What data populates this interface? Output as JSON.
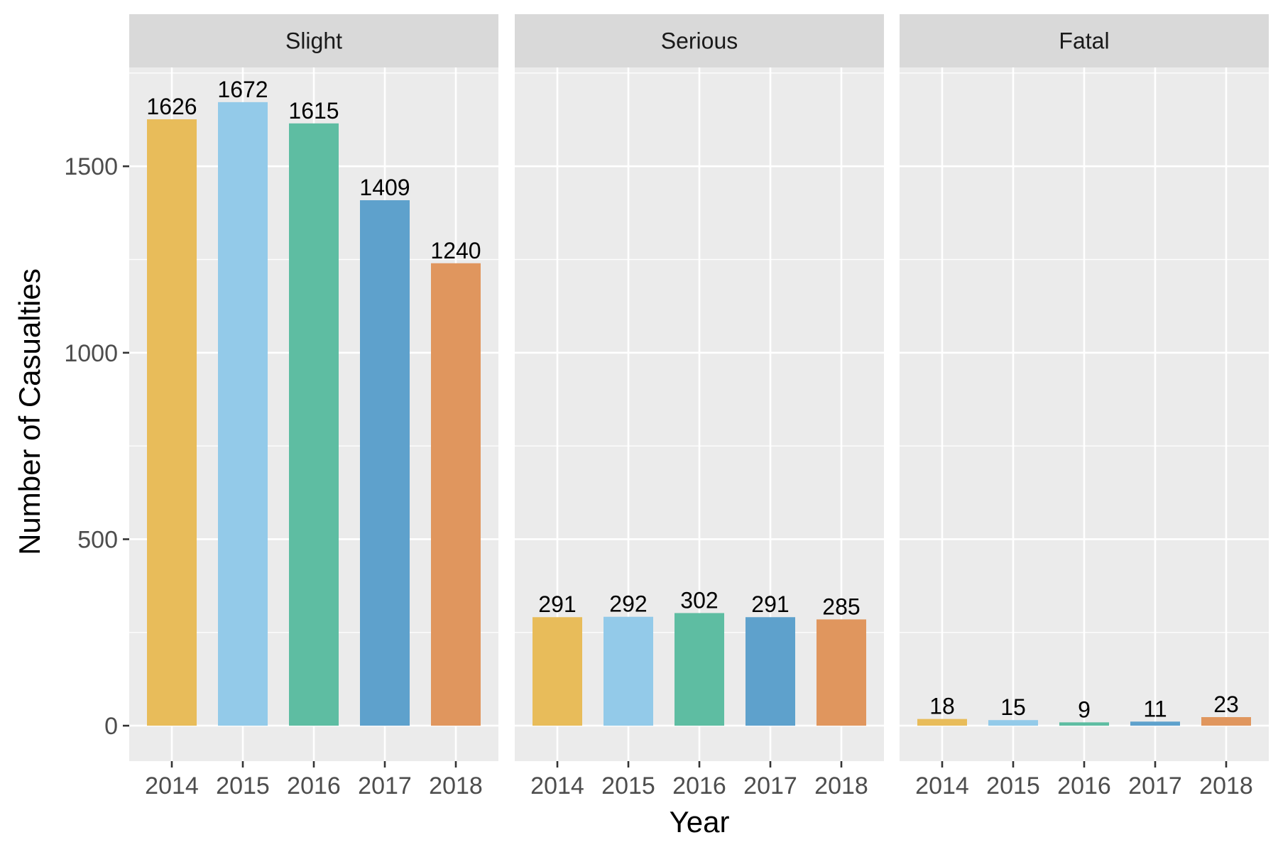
{
  "chart_data": {
    "type": "bar",
    "xlabel": "Year",
    "ylabel": "Number of Casualties",
    "ylim": [
      -95,
      1765
    ],
    "y_ticks": [
      0,
      500,
      1000,
      1500
    ],
    "grid": true,
    "categories": [
      "2014",
      "2015",
      "2016",
      "2017",
      "2018"
    ],
    "colors": [
      "#E8BC5A",
      "#93CAE9",
      "#5EBDA2",
      "#5EA1CC",
      "#E0965E"
    ],
    "panels": [
      {
        "label": "Slight",
        "values": [
          1626,
          1672,
          1615,
          1409,
          1240
        ]
      },
      {
        "label": "Serious",
        "values": [
          291,
          292,
          302,
          291,
          285
        ]
      },
      {
        "label": "Fatal",
        "values": [
          18,
          15,
          9,
          11,
          23
        ]
      }
    ]
  }
}
